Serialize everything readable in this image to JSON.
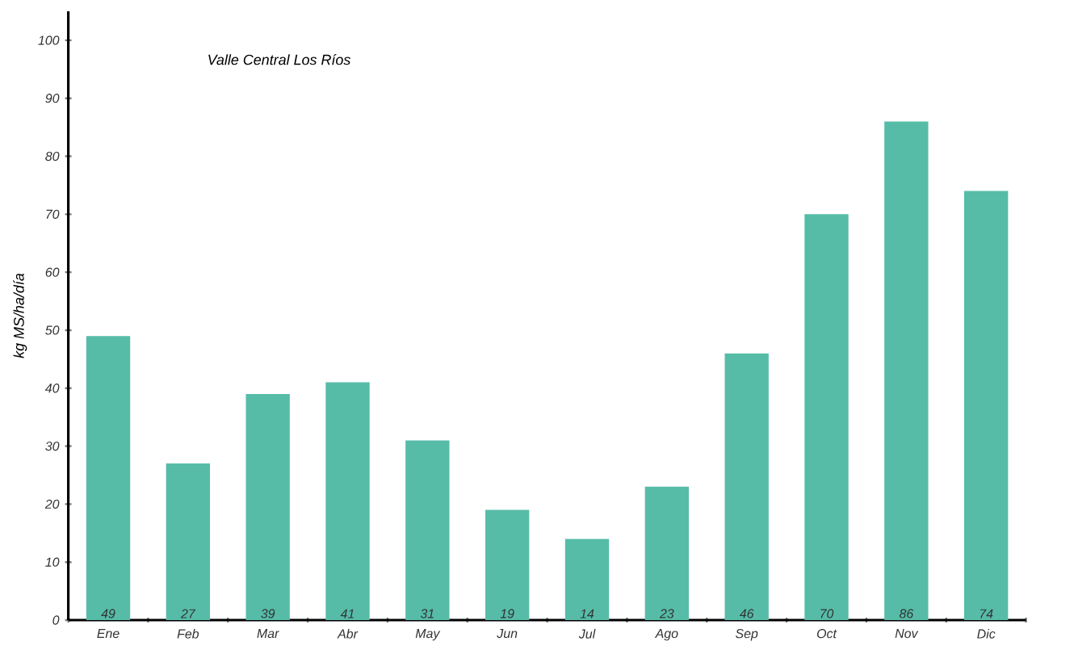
{
  "chart_data": {
    "type": "bar",
    "title": "Valle Central Los Ríos",
    "ylabel": "kg MS/ha/día",
    "categories": [
      "Ene",
      "Feb",
      "Mar",
      "Abr",
      "May",
      "Jun",
      "Jul",
      "Ago",
      "Sep",
      "Oct",
      "Nov",
      "Dic"
    ],
    "values": [
      49,
      27,
      39,
      41,
      31,
      19,
      14,
      23,
      46,
      70,
      86,
      74
    ],
    "color": "#56bca8",
    "data_labels": true,
    "ylim": [
      0,
      105
    ],
    "yticks": [
      0,
      10,
      20,
      30,
      40,
      50,
      60,
      70,
      80,
      90,
      100
    ]
  }
}
